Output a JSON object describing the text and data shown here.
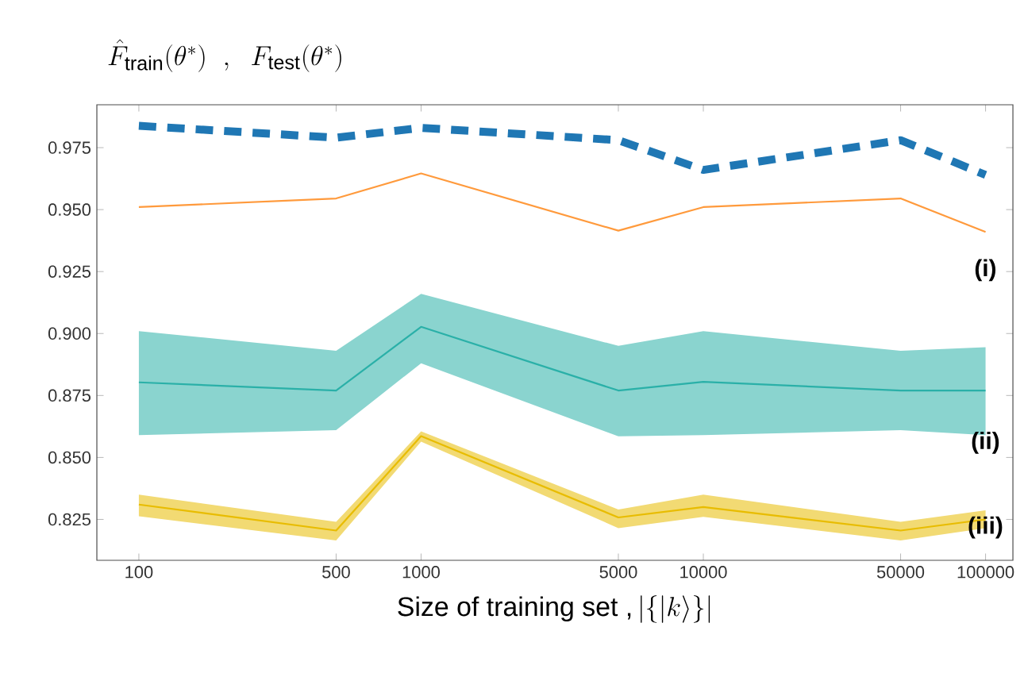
{
  "chart_data": {
    "type": "line",
    "title": "\\hat{F}_{\\mathrm{train}}(\\theta^*)\\ \\ ,\\ \\ F_{\\mathrm{test}}(\\theta^*)",
    "xlabel": "\\mbox{Size of training set ,}\\left|\\{|k\\rangle\\}\\right|",
    "x": [
      100,
      500,
      1000,
      5000,
      10000,
      50000,
      100000
    ],
    "series": [
      {
        "color": "#1f77b4",
        "line_style": "dashed",
        "values": [
          0.9838,
          0.979,
          0.983,
          0.978,
          0.966,
          0.978,
          0.964
        ]
      },
      {
        "color": "#ff9a3c",
        "values": [
          0.951,
          0.9545,
          0.9646,
          0.9415,
          0.951,
          0.9545,
          0.941
        ]
      },
      {
        "color": "#2ab0a8",
        "values": [
          0.8803,
          0.877,
          0.9027,
          0.877,
          0.8805,
          0.877,
          0.877
        ],
        "lower": [
          0.859,
          0.861,
          0.888,
          0.8585,
          0.859,
          0.861,
          0.859
        ],
        "upper": [
          0.901,
          0.893,
          0.916,
          0.895,
          0.901,
          0.893,
          0.8945
        ]
      },
      {
        "color": "#e8bc00",
        "values": [
          0.831,
          0.8205,
          0.8586,
          0.8258,
          0.83,
          0.8205,
          0.825
        ],
        "lower": [
          0.8263,
          0.8165,
          0.8564,
          0.8215,
          0.826,
          0.8165,
          0.8215
        ],
        "upper": [
          0.835,
          0.824,
          0.8605,
          0.829,
          0.835,
          0.824,
          0.8287
        ]
      }
    ],
    "annotations": [
      "(i)",
      "(ii)",
      "(iii)"
    ],
    "log": "x",
    "marker": "none",
    "xlim": [
      71,
      125000
    ],
    "ylim": [
      0.8085,
      0.9923
    ],
    "xticks": [
      100,
      500,
      1000,
      5000,
      10000,
      50000,
      100000
    ],
    "yticks": [
      0.825,
      {
        "value": 0.85,
        "label": "0.850"
      },
      0.875,
      {
        "value": 0.9,
        "label": "0.900"
      },
      0.925,
      {
        "value": 0.95,
        "label": "0.950"
      },
      0.975
    ],
    "grid": false
  }
}
